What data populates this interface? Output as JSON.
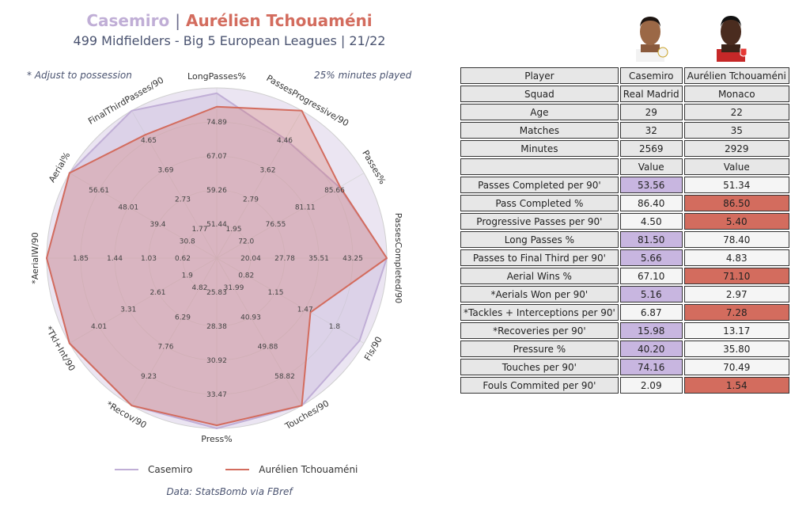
{
  "header": {
    "player1": "Casemiro",
    "separator": "|",
    "player2": "Aurélien Tchouaméni",
    "subtitle": "499 Midfielders - Big 5 European Leagues | 21/22",
    "note_left": "* Adjust to possession",
    "note_right": "25% minutes played",
    "credit": "Data: StatsBomb via FBref"
  },
  "legend": {
    "series1": "Casemiro",
    "series2": "Aurélien Tchouaméni"
  },
  "colors": {
    "casemiro": "#c0aed6",
    "tchouameni": "#d36c5e",
    "highlight1": "#c8b6e0",
    "highlight2": "#d36c5e",
    "grid": "#d8d8d8",
    "background_fill": "#ebe5f2"
  },
  "avatars": [
    {
      "name": "player-photo",
      "badge": "real-madrid-crest"
    },
    {
      "name": "player-photo",
      "badge": "monaco-crest"
    }
  ],
  "chart_data": {
    "type": "radar",
    "axes": [
      "LongPasses%",
      "PassesProgressive/90",
      "Passes%",
      "PassesCompleted/90",
      "Fls/90",
      "Touches/90",
      "Press%",
      "*Recov/90",
      "*Tkl+Int/90",
      "*AerialW/90",
      "Aerial%",
      "FinalThirdPasses/90"
    ],
    "ring_labels": [
      [
        "51.44",
        "59.26",
        "67.07",
        "74.89"
      ],
      [
        "1.95",
        "2.79",
        "3.62",
        "4.46"
      ],
      [
        "72.0",
        "76.55",
        "81.11",
        "85.66"
      ],
      [
        "20.04",
        "27.78",
        "35.51",
        "43.25"
      ],
      [
        "0.82",
        "1.15",
        "1.47",
        "1.8"
      ],
      [
        "31.99",
        "40.93",
        "49.88",
        "58.82"
      ],
      [
        "25.83",
        "28.38",
        "30.92",
        "33.47"
      ],
      [
        "4.82",
        "6.29",
        "7.76",
        "9.23"
      ],
      [
        "1.9",
        "2.61",
        "3.31",
        "4.01"
      ],
      [
        "0.62",
        "1.03",
        "1.44",
        "1.85"
      ],
      [
        "30.8",
        "39.4",
        "48.01",
        "56.61"
      ],
      [
        "1.77",
        "2.73",
        "3.69",
        "4.65"
      ]
    ],
    "series": [
      {
        "name": "Casemiro",
        "color": "#c0aed6",
        "values": [
          81.5,
          4.5,
          86.4,
          53.56,
          2.09,
          74.16,
          40.2,
          15.98,
          6.87,
          5.16,
          67.1,
          5.66
        ]
      },
      {
        "name": "Aurélien Tchouaméni",
        "color": "#d36c5e",
        "values": [
          78.4,
          5.4,
          86.5,
          51.34,
          1.54,
          70.49,
          35.8,
          13.17,
          7.28,
          2.97,
          71.1,
          4.83
        ]
      }
    ]
  },
  "table": {
    "info_rows": [
      [
        "Player",
        "Casemiro",
        "Aurélien Tchouaméni"
      ],
      [
        "Squad",
        "Real Madrid",
        "Monaco"
      ],
      [
        "Age",
        "29",
        "22"
      ],
      [
        "Matches",
        "32",
        "35"
      ],
      [
        "Minutes",
        "2569",
        "2929"
      ],
      [
        "",
        "Value",
        "Value"
      ]
    ],
    "rows": [
      {
        "metric": "Passes Completed per 90'",
        "v1": "53.56",
        "v2": "51.34",
        "better": 1
      },
      {
        "metric": "Pass Completed %",
        "v1": "86.40",
        "v2": "86.50",
        "better": 2
      },
      {
        "metric": "Progressive Passes per 90'",
        "v1": "4.50",
        "v2": "5.40",
        "better": 2
      },
      {
        "metric": "Long Passes %",
        "v1": "81.50",
        "v2": "78.40",
        "better": 1
      },
      {
        "metric": "Passes to Final Third per 90'",
        "v1": "5.66",
        "v2": "4.83",
        "better": 1
      },
      {
        "metric": "Aerial Wins %",
        "v1": "67.10",
        "v2": "71.10",
        "better": 2
      },
      {
        "metric": "*Aerials Won per 90'",
        "v1": "5.16",
        "v2": "2.97",
        "better": 1
      },
      {
        "metric": "*Tackles + Interceptions per 90'",
        "v1": "6.87",
        "v2": "7.28",
        "better": 2
      },
      {
        "metric": "*Recoveries per 90'",
        "v1": "15.98",
        "v2": "13.17",
        "better": 1
      },
      {
        "metric": "Pressure %",
        "v1": "40.20",
        "v2": "35.80",
        "better": 1
      },
      {
        "metric": "Touches per 90'",
        "v1": "74.16",
        "v2": "70.49",
        "better": 1
      },
      {
        "metric": "Fouls Commited per 90'",
        "v1": "2.09",
        "v2": "1.54",
        "better": 2
      }
    ]
  }
}
